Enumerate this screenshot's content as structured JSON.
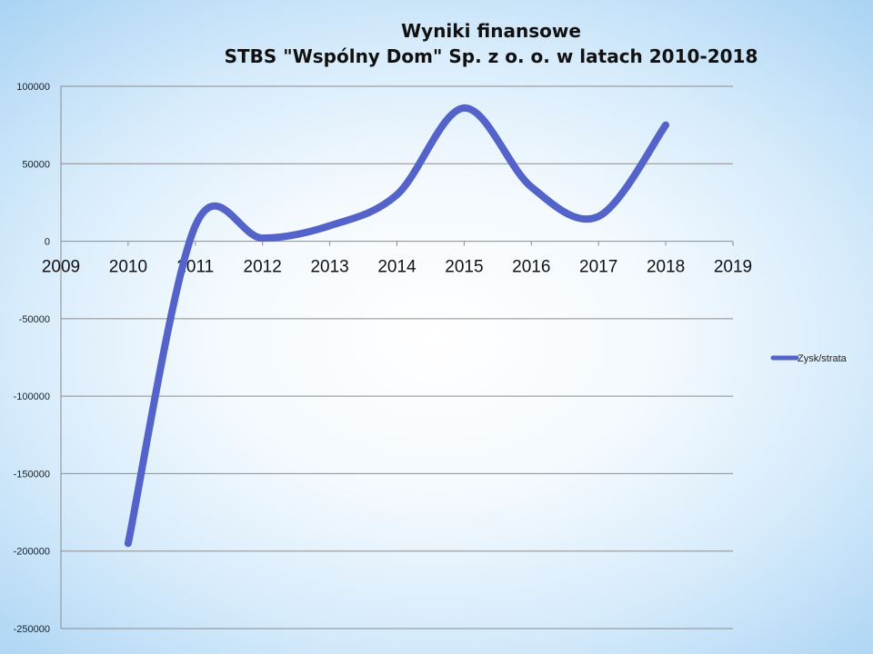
{
  "chart_data": {
    "type": "line",
    "title": [
      "Wyniki finansowe",
      "STBS \"Wspólny Dom\" Sp. z o. o. w latach 2010-2018"
    ],
    "xlabel": "",
    "ylabel": "",
    "x": [
      2010,
      2011,
      2012,
      2013,
      2014,
      2015,
      2016,
      2017,
      2018
    ],
    "xlim": [
      2009,
      2019
    ],
    "x_ticks": [
      "2009",
      "2010",
      "2011",
      "2012",
      "2013",
      "2014",
      "2015",
      "2016",
      "2017",
      "2018",
      "2019"
    ],
    "ylim": [
      -250000,
      100000
    ],
    "y_ticks": [
      "100000",
      "50000",
      "0",
      "-50000",
      "-100000",
      "-150000",
      "-200000",
      "-250000"
    ],
    "y_tick_values": [
      100000,
      50000,
      0,
      -50000,
      -100000,
      -150000,
      -200000,
      -250000
    ],
    "series": [
      {
        "name": "Zysk/strata",
        "color": "#5463c9",
        "values": [
          -195000,
          10000,
          2000,
          10000,
          30000,
          86000,
          35000,
          16000,
          75000
        ]
      }
    ],
    "grid": true,
    "legend_position": "right",
    "smooth": true
  }
}
